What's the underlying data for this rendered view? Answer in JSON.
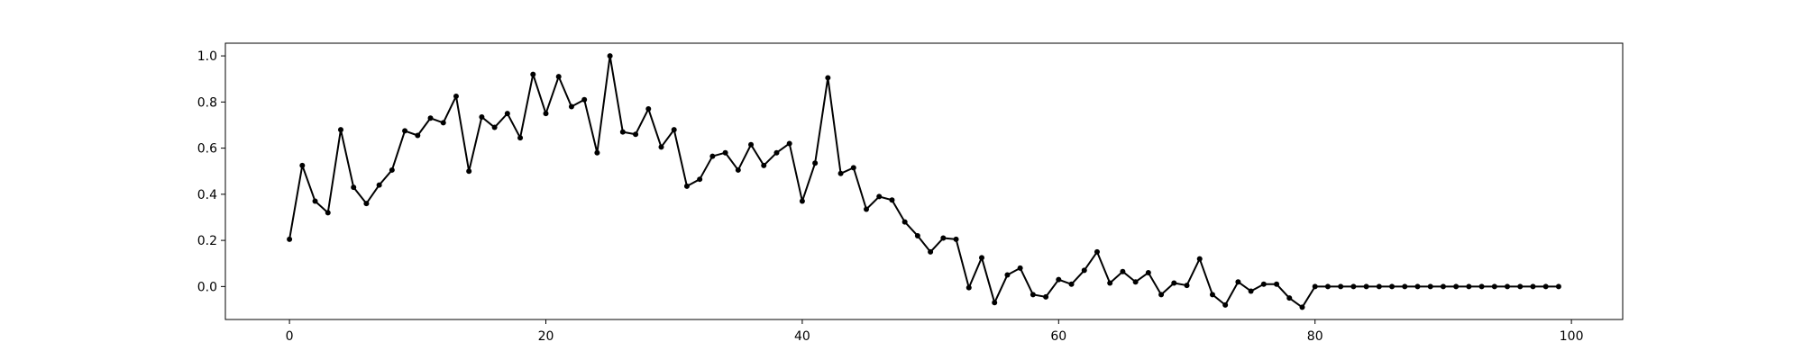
{
  "chart_data": {
    "type": "line",
    "title": "",
    "xlabel": "",
    "ylabel": "",
    "xlim": [
      -5,
      104
    ],
    "ylim": [
      -0.143,
      1.055
    ],
    "xticks": [
      0,
      20,
      40,
      60,
      80,
      100
    ],
    "yticks": [
      0.0,
      0.2,
      0.4,
      0.6,
      0.8,
      1.0
    ],
    "xtick_labels": [
      "0",
      "20",
      "40",
      "60",
      "80",
      "100"
    ],
    "ytick_labels": [
      "0.0",
      "0.2",
      "0.4",
      "0.6",
      "0.8",
      "1.0"
    ],
    "grid": false,
    "color": "#000000",
    "series": [
      {
        "x": [
          0,
          1,
          2,
          3,
          4,
          5,
          6,
          7,
          8,
          9,
          10,
          11,
          12,
          13,
          14,
          15,
          16,
          17,
          18,
          19,
          20,
          21,
          22,
          23,
          24,
          25,
          26,
          27,
          28,
          29,
          30,
          31,
          32,
          33,
          34,
          35,
          36,
          37,
          38,
          39,
          40,
          41,
          42,
          43,
          44,
          45,
          46,
          47,
          48,
          49,
          50,
          51,
          52,
          53,
          54,
          55,
          56,
          57,
          58,
          59,
          60,
          61,
          62,
          63,
          64,
          65,
          66,
          67,
          68,
          69,
          70,
          71,
          72,
          73,
          74,
          75,
          76,
          77,
          78,
          79,
          80,
          81,
          82,
          83,
          84,
          85,
          86,
          87,
          88,
          89,
          90,
          91,
          92,
          93,
          94,
          95,
          96,
          97,
          98,
          99
        ],
        "values": [
          0.205,
          0.525,
          0.37,
          0.32,
          0.68,
          0.43,
          0.36,
          0.44,
          0.505,
          0.675,
          0.655,
          0.73,
          0.71,
          0.825,
          0.5,
          0.735,
          0.69,
          0.75,
          0.645,
          0.92,
          0.75,
          0.91,
          0.78,
          0.81,
          0.58,
          1.0,
          0.67,
          0.66,
          0.77,
          0.605,
          0.68,
          0.435,
          0.465,
          0.565,
          0.58,
          0.505,
          0.615,
          0.525,
          0.58,
          0.62,
          0.37,
          0.535,
          0.905,
          0.49,
          0.515,
          0.335,
          0.39,
          0.375,
          0.28,
          0.22,
          0.15,
          0.21,
          0.205,
          -0.005,
          0.125,
          -0.07,
          0.05,
          0.08,
          -0.035,
          -0.045,
          0.03,
          0.01,
          0.07,
          0.15,
          0.015,
          0.065,
          0.02,
          0.06,
          -0.035,
          0.015,
          0.005,
          0.12,
          -0.035,
          -0.08,
          0.02,
          -0.02,
          0.01,
          0.01,
          -0.05,
          -0.09,
          0.0,
          0.0,
          0.0,
          0.0,
          0.0,
          0.0,
          0.0,
          0.0,
          0.0,
          0.0,
          0.0,
          0.0,
          0.0,
          0.0,
          0.0,
          0.0,
          0.0,
          0.0,
          0.0,
          0.0
        ]
      }
    ]
  }
}
